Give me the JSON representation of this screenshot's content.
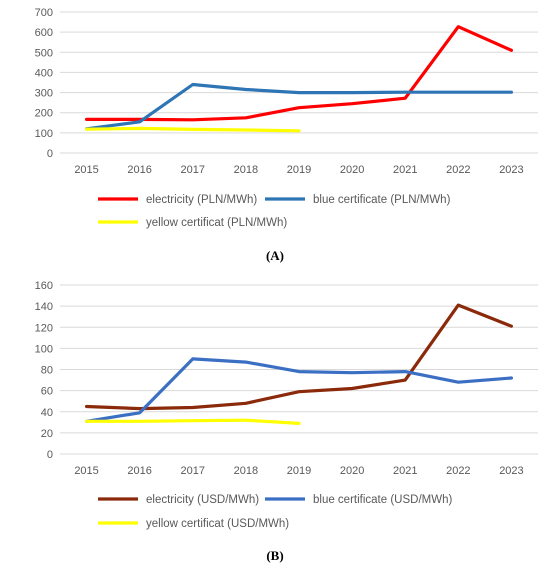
{
  "chart_data": [
    {
      "type": "line",
      "panel_label": "(A)",
      "x": [
        "2015",
        "2016",
        "2017",
        "2018",
        "2019",
        "2020",
        "2021",
        "2022",
        "2023"
      ],
      "ylim": [
        0,
        700
      ],
      "yticks": [
        0,
        100,
        200,
        300,
        400,
        500,
        600,
        700
      ],
      "grid": true,
      "legend": "bottom",
      "series": [
        {
          "name": "electricity (PLN/MWh)",
          "color": "#ff0000",
          "values": [
            167,
            167,
            165,
            175,
            225,
            245,
            272,
            627,
            510
          ]
        },
        {
          "name": "blue certificate (PLN/MWh)",
          "color": "#2e75b6",
          "values": [
            120,
            155,
            340,
            315,
            300,
            300,
            302,
            302,
            302
          ]
        },
        {
          "name": "yellow certificat (PLN/MWh)",
          "color": "#ffff00",
          "values": [
            118,
            122,
            117,
            114,
            110,
            null,
            null,
            null,
            null
          ]
        }
      ]
    },
    {
      "type": "line",
      "panel_label": "(B)",
      "x": [
        "2015",
        "2016",
        "2017",
        "2018",
        "2019",
        "2020",
        "2021",
        "2022",
        "2023"
      ],
      "ylim": [
        0,
        160
      ],
      "yticks": [
        0,
        20,
        40,
        60,
        80,
        100,
        120,
        140,
        160
      ],
      "grid": true,
      "legend": "bottom",
      "series": [
        {
          "name": "electricity (USD/MWh)",
          "color": "#8b2a0a",
          "values": [
            45,
            43,
            44,
            48,
            59,
            62,
            70,
            141,
            121
          ]
        },
        {
          "name": "blue certificate (USD/MWh)",
          "color": "#3b6fc4",
          "values": [
            31,
            39,
            90,
            87,
            78,
            77,
            78,
            68,
            72
          ]
        },
        {
          "name": "yellow certificat (USD/MWh)",
          "color": "#ffff00",
          "values": [
            31,
            31,
            31.5,
            32,
            29,
            null,
            null,
            null,
            null
          ]
        }
      ]
    }
  ]
}
